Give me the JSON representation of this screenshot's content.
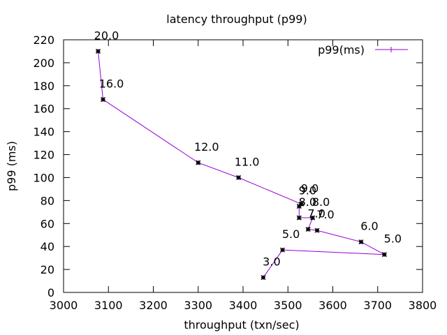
{
  "chart_data": {
    "type": "line",
    "title": "latency throughput (p99)",
    "xlabel": "throughput (txn/sec)",
    "ylabel": "p99 (ms)",
    "xlim": [
      3000,
      3800
    ],
    "ylim": [
      0,
      220
    ],
    "xticks": [
      3000,
      3100,
      3200,
      3300,
      3400,
      3500,
      3600,
      3700,
      3800
    ],
    "yticks": [
      0,
      20,
      40,
      60,
      80,
      100,
      120,
      140,
      160,
      180,
      200,
      220
    ],
    "grid": false,
    "legend_position": "top-right",
    "line_color": "#9400d3",
    "marker_color": "#000000",
    "series": [
      {
        "name": "p99(ms)",
        "points": [
          {
            "x": 3077,
            "y": 210,
            "label": "20.0"
          },
          {
            "x": 3088,
            "y": 168,
            "label": "16.0"
          },
          {
            "x": 3300,
            "y": 113,
            "label": "12.0"
          },
          {
            "x": 3390,
            "y": 100,
            "label": "11.0"
          },
          {
            "x": 3530,
            "y": 77,
            "label": "9.0"
          },
          {
            "x": 3525,
            "y": 75,
            "label": "9.0"
          },
          {
            "x": 3525,
            "y": 65,
            "label": "8.0"
          },
          {
            "x": 3555,
            "y": 65,
            "label": "8.0"
          },
          {
            "x": 3545,
            "y": 55,
            "label": "7.0"
          },
          {
            "x": 3565,
            "y": 54,
            "label": "7.0"
          },
          {
            "x": 3663,
            "y": 44,
            "label": "6.0"
          },
          {
            "x": 3715,
            "y": 33,
            "label": "5.0"
          },
          {
            "x": 3488,
            "y": 37,
            "label": "5.0"
          },
          {
            "x": 3445,
            "y": 13,
            "label": "3.0"
          }
        ]
      }
    ]
  }
}
